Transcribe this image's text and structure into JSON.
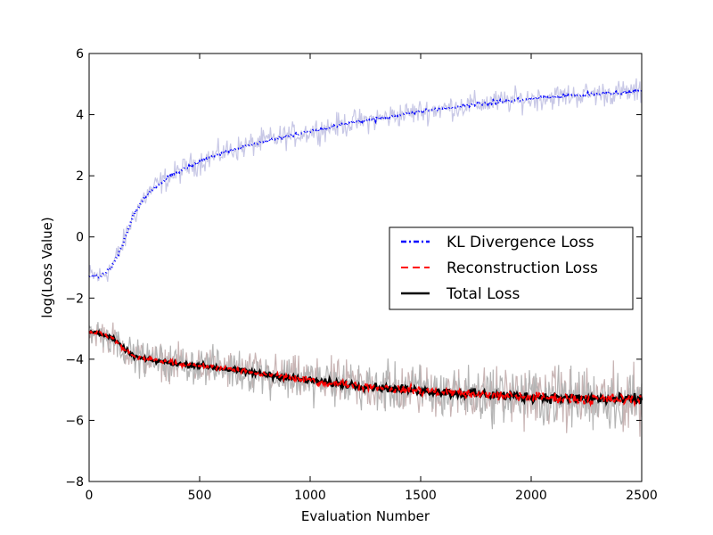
{
  "chart_data": {
    "type": "line",
    "title": "",
    "xlabel": "Evaluation Number",
    "ylabel": "log(Loss Value)",
    "xlim": [
      0,
      2500
    ],
    "ylim": [
      -8,
      6
    ],
    "xticks": [
      0,
      500,
      1000,
      1500,
      2000,
      2500
    ],
    "yticks": [
      -8,
      -6,
      -4,
      -2,
      0,
      2,
      4,
      6
    ],
    "grid": false,
    "legend_position": "center-right",
    "series": [
      {
        "name": "KL Divergence Loss",
        "style": "dash-dot",
        "color": "#0000ff",
        "band_color": "#c8c8e6",
        "x": [
          0,
          50,
          100,
          150,
          200,
          250,
          300,
          350,
          400,
          450,
          500,
          600,
          700,
          800,
          900,
          1000,
          1100,
          1200,
          1300,
          1400,
          1500,
          1600,
          1700,
          1800,
          1900,
          2000,
          2100,
          2200,
          2300,
          2400,
          2500
        ],
        "y": [
          -1.25,
          -1.3,
          -1.0,
          -0.3,
          0.7,
          1.3,
          1.65,
          1.9,
          2.1,
          2.3,
          2.45,
          2.75,
          2.95,
          3.15,
          3.3,
          3.45,
          3.6,
          3.75,
          3.85,
          4.0,
          4.1,
          4.2,
          4.3,
          4.38,
          4.45,
          4.52,
          4.58,
          4.63,
          4.68,
          4.72,
          4.75
        ]
      },
      {
        "name": "Reconstruction Loss",
        "style": "dashed",
        "color": "#ff0000",
        "band_color": "#c8b4b4",
        "x": [
          0,
          50,
          100,
          150,
          200,
          250,
          300,
          350,
          400,
          450,
          500,
          600,
          700,
          800,
          900,
          1000,
          1100,
          1200,
          1300,
          1400,
          1500,
          1600,
          1700,
          1800,
          1900,
          2000,
          2100,
          2200,
          2300,
          2400,
          2500
        ],
        "y": [
          -3.1,
          -3.15,
          -3.3,
          -3.6,
          -3.9,
          -4.0,
          -4.05,
          -4.1,
          -4.15,
          -4.18,
          -4.2,
          -4.3,
          -4.4,
          -4.5,
          -4.6,
          -4.7,
          -4.78,
          -4.85,
          -4.92,
          -4.98,
          -5.03,
          -5.08,
          -5.12,
          -5.16,
          -5.2,
          -5.23,
          -5.26,
          -5.28,
          -5.3,
          -5.32,
          -5.33
        ]
      },
      {
        "name": "Total Loss",
        "style": "solid",
        "color": "#000000",
        "band_color": "#b4b4b4",
        "x": [
          0,
          50,
          100,
          150,
          200,
          250,
          300,
          350,
          400,
          450,
          500,
          600,
          700,
          800,
          900,
          1000,
          1100,
          1200,
          1300,
          1400,
          1500,
          1600,
          1700,
          1800,
          1900,
          2000,
          2100,
          2200,
          2300,
          2400,
          2500
        ],
        "y": [
          -3.1,
          -3.15,
          -3.3,
          -3.6,
          -3.9,
          -4.0,
          -4.05,
          -4.1,
          -4.15,
          -4.18,
          -4.2,
          -4.3,
          -4.4,
          -4.5,
          -4.6,
          -4.7,
          -4.78,
          -4.85,
          -4.92,
          -4.98,
          -5.03,
          -5.08,
          -5.12,
          -5.16,
          -5.2,
          -5.23,
          -5.26,
          -5.28,
          -5.3,
          -5.32,
          -5.33
        ]
      }
    ]
  }
}
